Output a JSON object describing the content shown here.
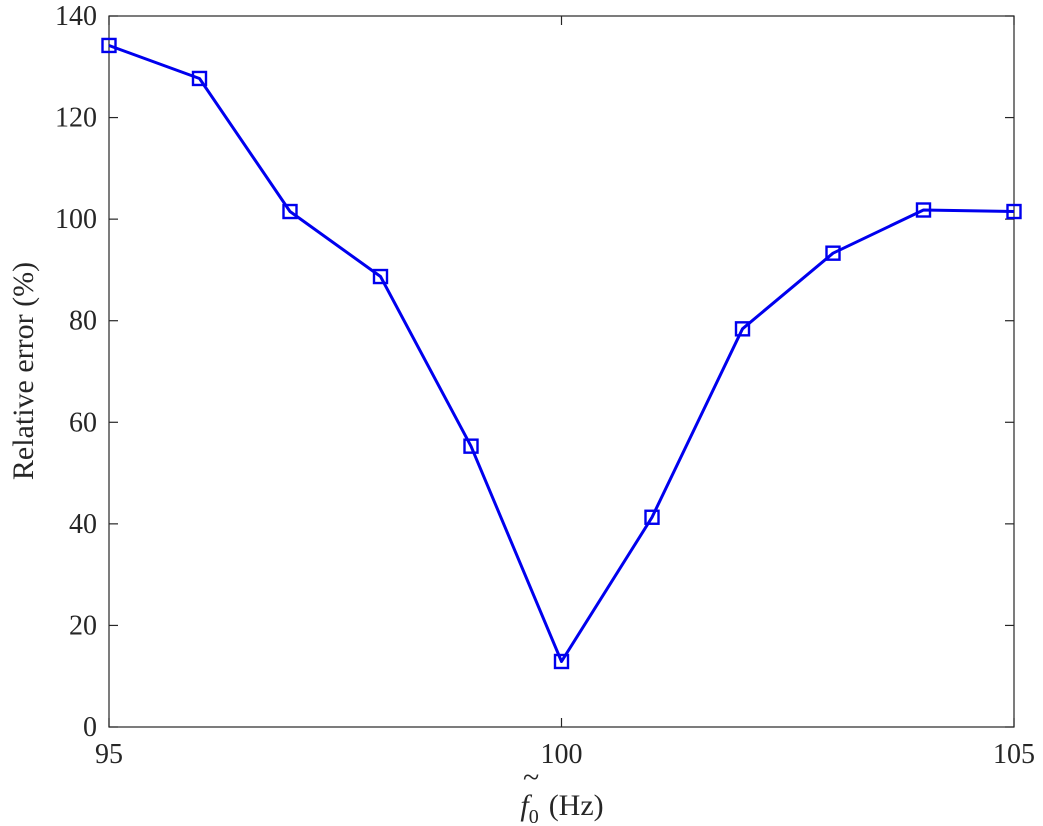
{
  "chart_data": {
    "type": "line",
    "title": "",
    "xlabel_symbol": "f",
    "xlabel_subscript": "0",
    "xlabel_unit": "(Hz)",
    "ylabel": "Relative error (%)",
    "xlim": [
      95,
      105
    ],
    "ylim": [
      0,
      140
    ],
    "xticks": [
      95,
      100,
      105
    ],
    "yticks": [
      0,
      20,
      40,
      60,
      80,
      100,
      120,
      140
    ],
    "grid": false,
    "legend": "none",
    "series": [
      {
        "color": "#0000ee",
        "marker": "square",
        "x": [
          95,
          96,
          97,
          98,
          99,
          100,
          101,
          102,
          103,
          104,
          105
        ],
        "y": [
          134.2,
          127.7,
          101.5,
          88.7,
          55.3,
          12.9,
          41.3,
          78.4,
          93.3,
          101.8,
          101.5
        ]
      }
    ]
  }
}
